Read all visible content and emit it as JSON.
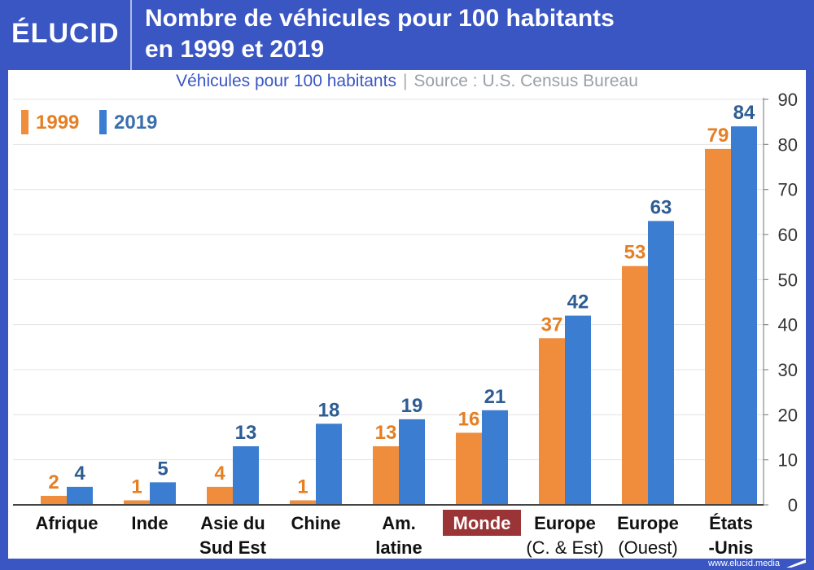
{
  "header": {
    "logo": "ÉLUCID",
    "title_line1": "Nombre de véhicules pour 100 habitants",
    "title_line2": "en 1999 et 2019"
  },
  "subtitle": {
    "main": "Véhicules pour 100 habitants",
    "separator": "|",
    "source": "Source : U.S. Census Bureau"
  },
  "footer": {
    "url": "www.elucid.media"
  },
  "colors": {
    "brand_blue": "#3a56c2",
    "orange": "#f08d3c",
    "blue": "#3a7dd1",
    "orange_text": "#e57f24",
    "blue_text": "#2d5d93",
    "highlight": "#9b3436"
  },
  "chart_data": {
    "type": "bar",
    "title": "Nombre de véhicules pour 100 habitants en 1999 et 2019",
    "ylabel": "Véhicules pour 100 habitants",
    "xlabel": "",
    "ylim": [
      0,
      90
    ],
    "yticks": [
      0,
      10,
      20,
      30,
      40,
      50,
      60,
      70,
      80,
      90
    ],
    "y_axis_side": "right",
    "grid": true,
    "legend_position": "top-left",
    "categories": [
      [
        "Afrique"
      ],
      [
        "Inde"
      ],
      [
        "Asie du",
        "Sud Est"
      ],
      [
        "Chine"
      ],
      [
        "Am.",
        "latine"
      ],
      [
        "Monde"
      ],
      [
        "Europe",
        "(C. & Est)"
      ],
      [
        "Europe",
        "(Ouest)"
      ],
      [
        "États",
        "-Unis"
      ]
    ],
    "highlight_category_index": 5,
    "series": [
      {
        "name": "1999",
        "values": [
          2,
          1,
          4,
          1,
          13,
          16,
          37,
          53,
          79
        ]
      },
      {
        "name": "2019",
        "values": [
          4,
          5,
          13,
          18,
          19,
          21,
          42,
          63,
          84
        ]
      }
    ]
  }
}
